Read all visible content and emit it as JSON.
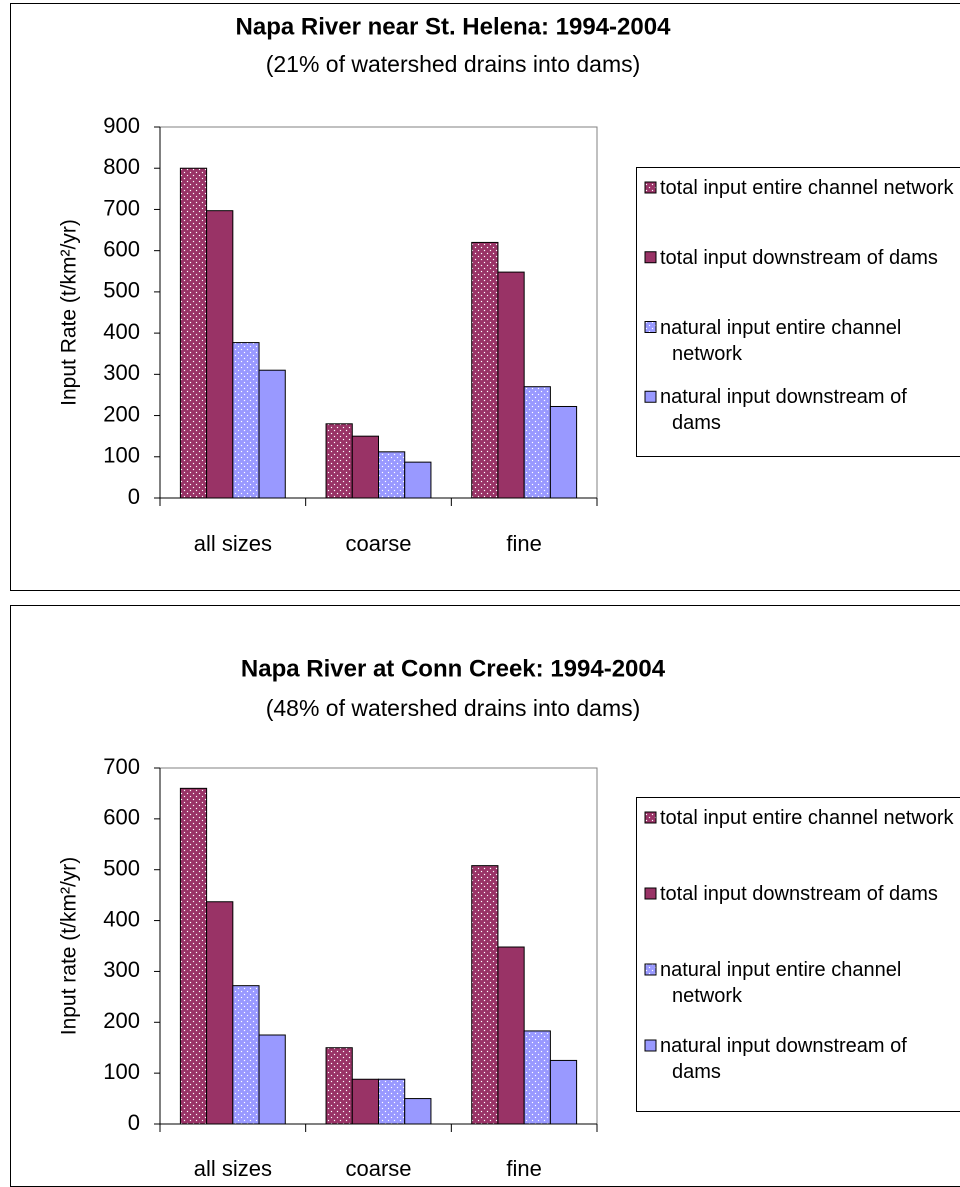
{
  "chart_data": [
    {
      "type": "bar",
      "title": "Napa River near St. Helena: 1994-2004",
      "subtitle": "(21% of watershed drains into dams)",
      "y_label": "Input Rate (t/km²/yr)",
      "categories": [
        "all sizes",
        "coarse",
        "fine"
      ],
      "series": [
        {
          "name": "total input entire channel network",
          "color": "#993366",
          "pattern": "dots",
          "values": [
            800,
            180,
            620
          ]
        },
        {
          "name": "total input downstream of dams",
          "color": "#993366",
          "values": [
            697,
            150,
            548
          ]
        },
        {
          "name": "natural input entire channel network",
          "color": "#9999ff",
          "pattern": "dots",
          "values": [
            377,
            112,
            270
          ]
        },
        {
          "name": "natural input downstream of dams",
          "color": "#9999ff",
          "values": [
            310,
            87,
            222
          ]
        }
      ],
      "ylim": [
        0,
        900
      ],
      "yticks": [
        0,
        100,
        200,
        300,
        400,
        500,
        600,
        700,
        800,
        900
      ],
      "legend": "right"
    },
    {
      "type": "bar",
      "title": "Napa River at Conn Creek: 1994-2004",
      "subtitle": "(48% of watershed drains into dams)",
      "y_label": "Input rate (t/km²/yr)",
      "categories": [
        "all sizes",
        "coarse",
        "fine"
      ],
      "series": [
        {
          "name": "total input entire channel network",
          "color": "#993366",
          "pattern": "dots",
          "values": [
            660,
            150,
            508
          ]
        },
        {
          "name": "total input downstream of dams",
          "color": "#993366",
          "values": [
            437,
            88,
            348
          ]
        },
        {
          "name": "natural input entire channel network",
          "color": "#9999ff",
          "pattern": "dots",
          "values": [
            272,
            88,
            183
          ]
        },
        {
          "name": "natural input downstream of dams",
          "color": "#9999ff",
          "values": [
            175,
            50,
            125
          ]
        }
      ],
      "ylim": [
        0,
        700
      ],
      "yticks": [
        0,
        100,
        200,
        300,
        400,
        500,
        600,
        700
      ],
      "legend": "right"
    }
  ]
}
